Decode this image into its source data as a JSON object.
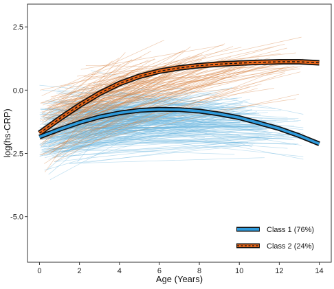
{
  "chart_data": {
    "type": "line",
    "xlabel": "Age (Years)",
    "ylabel": "log(hs-CRP)",
    "xlim": [
      -0.6,
      14.6
    ],
    "ylim": [
      -6.8,
      3.4
    ],
    "x_ticks": [
      0,
      2,
      4,
      6,
      8,
      10,
      12,
      14
    ],
    "x_tick_labels": [
      "0",
      "2",
      "4",
      "6",
      "8",
      "10",
      "12",
      "14"
    ],
    "y_ticks": [
      2.5,
      0.0,
      -2.5,
      -5.0
    ],
    "y_tick_labels": [
      "2.5",
      "0.0",
      "-2.5",
      "-5.0"
    ],
    "grid": false,
    "legend_position": "bottom-right",
    "colors": {
      "class1": "#2f9bdc",
      "class1_spaghetti": "#6fb8e0",
      "class2": "#e8671b",
      "class2_spaghetti": "#d9874a"
    },
    "series": [
      {
        "name": "Class 1 (76%)",
        "x": [
          0,
          1,
          2,
          3,
          4,
          5,
          6,
          7,
          8,
          9,
          10,
          11,
          12,
          13,
          14
        ],
        "y": [
          -1.85,
          -1.55,
          -1.28,
          -1.06,
          -0.9,
          -0.8,
          -0.76,
          -0.77,
          -0.83,
          -0.94,
          -1.09,
          -1.3,
          -1.52,
          -1.8,
          -2.12
        ]
      },
      {
        "name": "Class 2 (24%)",
        "x": [
          0,
          1,
          2,
          3,
          4,
          5,
          6,
          7,
          8,
          9,
          10,
          11,
          12,
          13,
          14
        ],
        "y": [
          -1.7,
          -1.13,
          -0.6,
          -0.13,
          0.26,
          0.55,
          0.75,
          0.88,
          0.97,
          1.03,
          1.07,
          1.1,
          1.12,
          1.12,
          1.08
        ]
      }
    ],
    "legend": [
      "Class 1 (76%)",
      "Class 2 (24%)"
    ]
  }
}
